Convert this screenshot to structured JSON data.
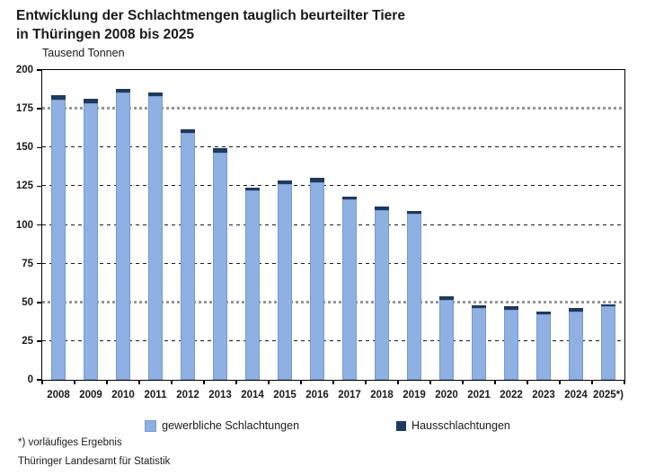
{
  "title": {
    "line1": "Entwicklung der Schlachtmengen tauglich beurteilter Tiere",
    "line2": "in Thüringen 2008 bis 2025"
  },
  "footnote": "*) vorläufiges Ergebnis",
  "source": "Thüringer Landesamt für Statistik",
  "colors": {
    "bar_light": "#8EB0E2",
    "bar_light_border": "#7A99CE",
    "bar_dark": "#1E3A5E",
    "grid_gray": "#969696",
    "grid_black": "#1a1a1a",
    "axis": "#000000"
  },
  "chart_data": {
    "type": "bar",
    "stacked": true,
    "title": "Entwicklung der Schlachtmengen tauglich beurteilter Tiere in Thüringen 2008 bis 2025",
    "ylabel": "Tausend Tonnen",
    "xlabel": "",
    "ylim": [
      0,
      200
    ],
    "yticks": [
      0,
      25,
      50,
      75,
      100,
      125,
      150,
      175,
      200
    ],
    "gray_gridlines": [
      175,
      50
    ],
    "black_gridlines": [
      150,
      125,
      100,
      75,
      25
    ],
    "grid": true,
    "legend_position": "bottom",
    "categories": [
      "2008",
      "2009",
      "2010",
      "2011",
      "2012",
      "2013",
      "2014",
      "2015",
      "2016",
      "2017",
      "2018",
      "2019",
      "2020",
      "2021",
      "2022",
      "2023",
      "2024",
      "2025*)"
    ],
    "series": [
      {
        "name": "gewerbliche Schlachtungen",
        "color": "#8EB0E2",
        "values": [
          180.5,
          178.5,
          185,
          183,
          159,
          146.5,
          122,
          126,
          127.5,
          116,
          109.5,
          107,
          51.5,
          46,
          45,
          42,
          44,
          47
        ]
      },
      {
        "name": "Hausschlachtungen",
        "color": "#1E3A5E",
        "values": [
          3,
          2.5,
          2.5,
          2.5,
          2.5,
          2.5,
          2,
          2.5,
          2.5,
          2,
          2,
          2,
          2,
          2,
          2,
          2,
          2,
          1.5
        ]
      }
    ]
  }
}
